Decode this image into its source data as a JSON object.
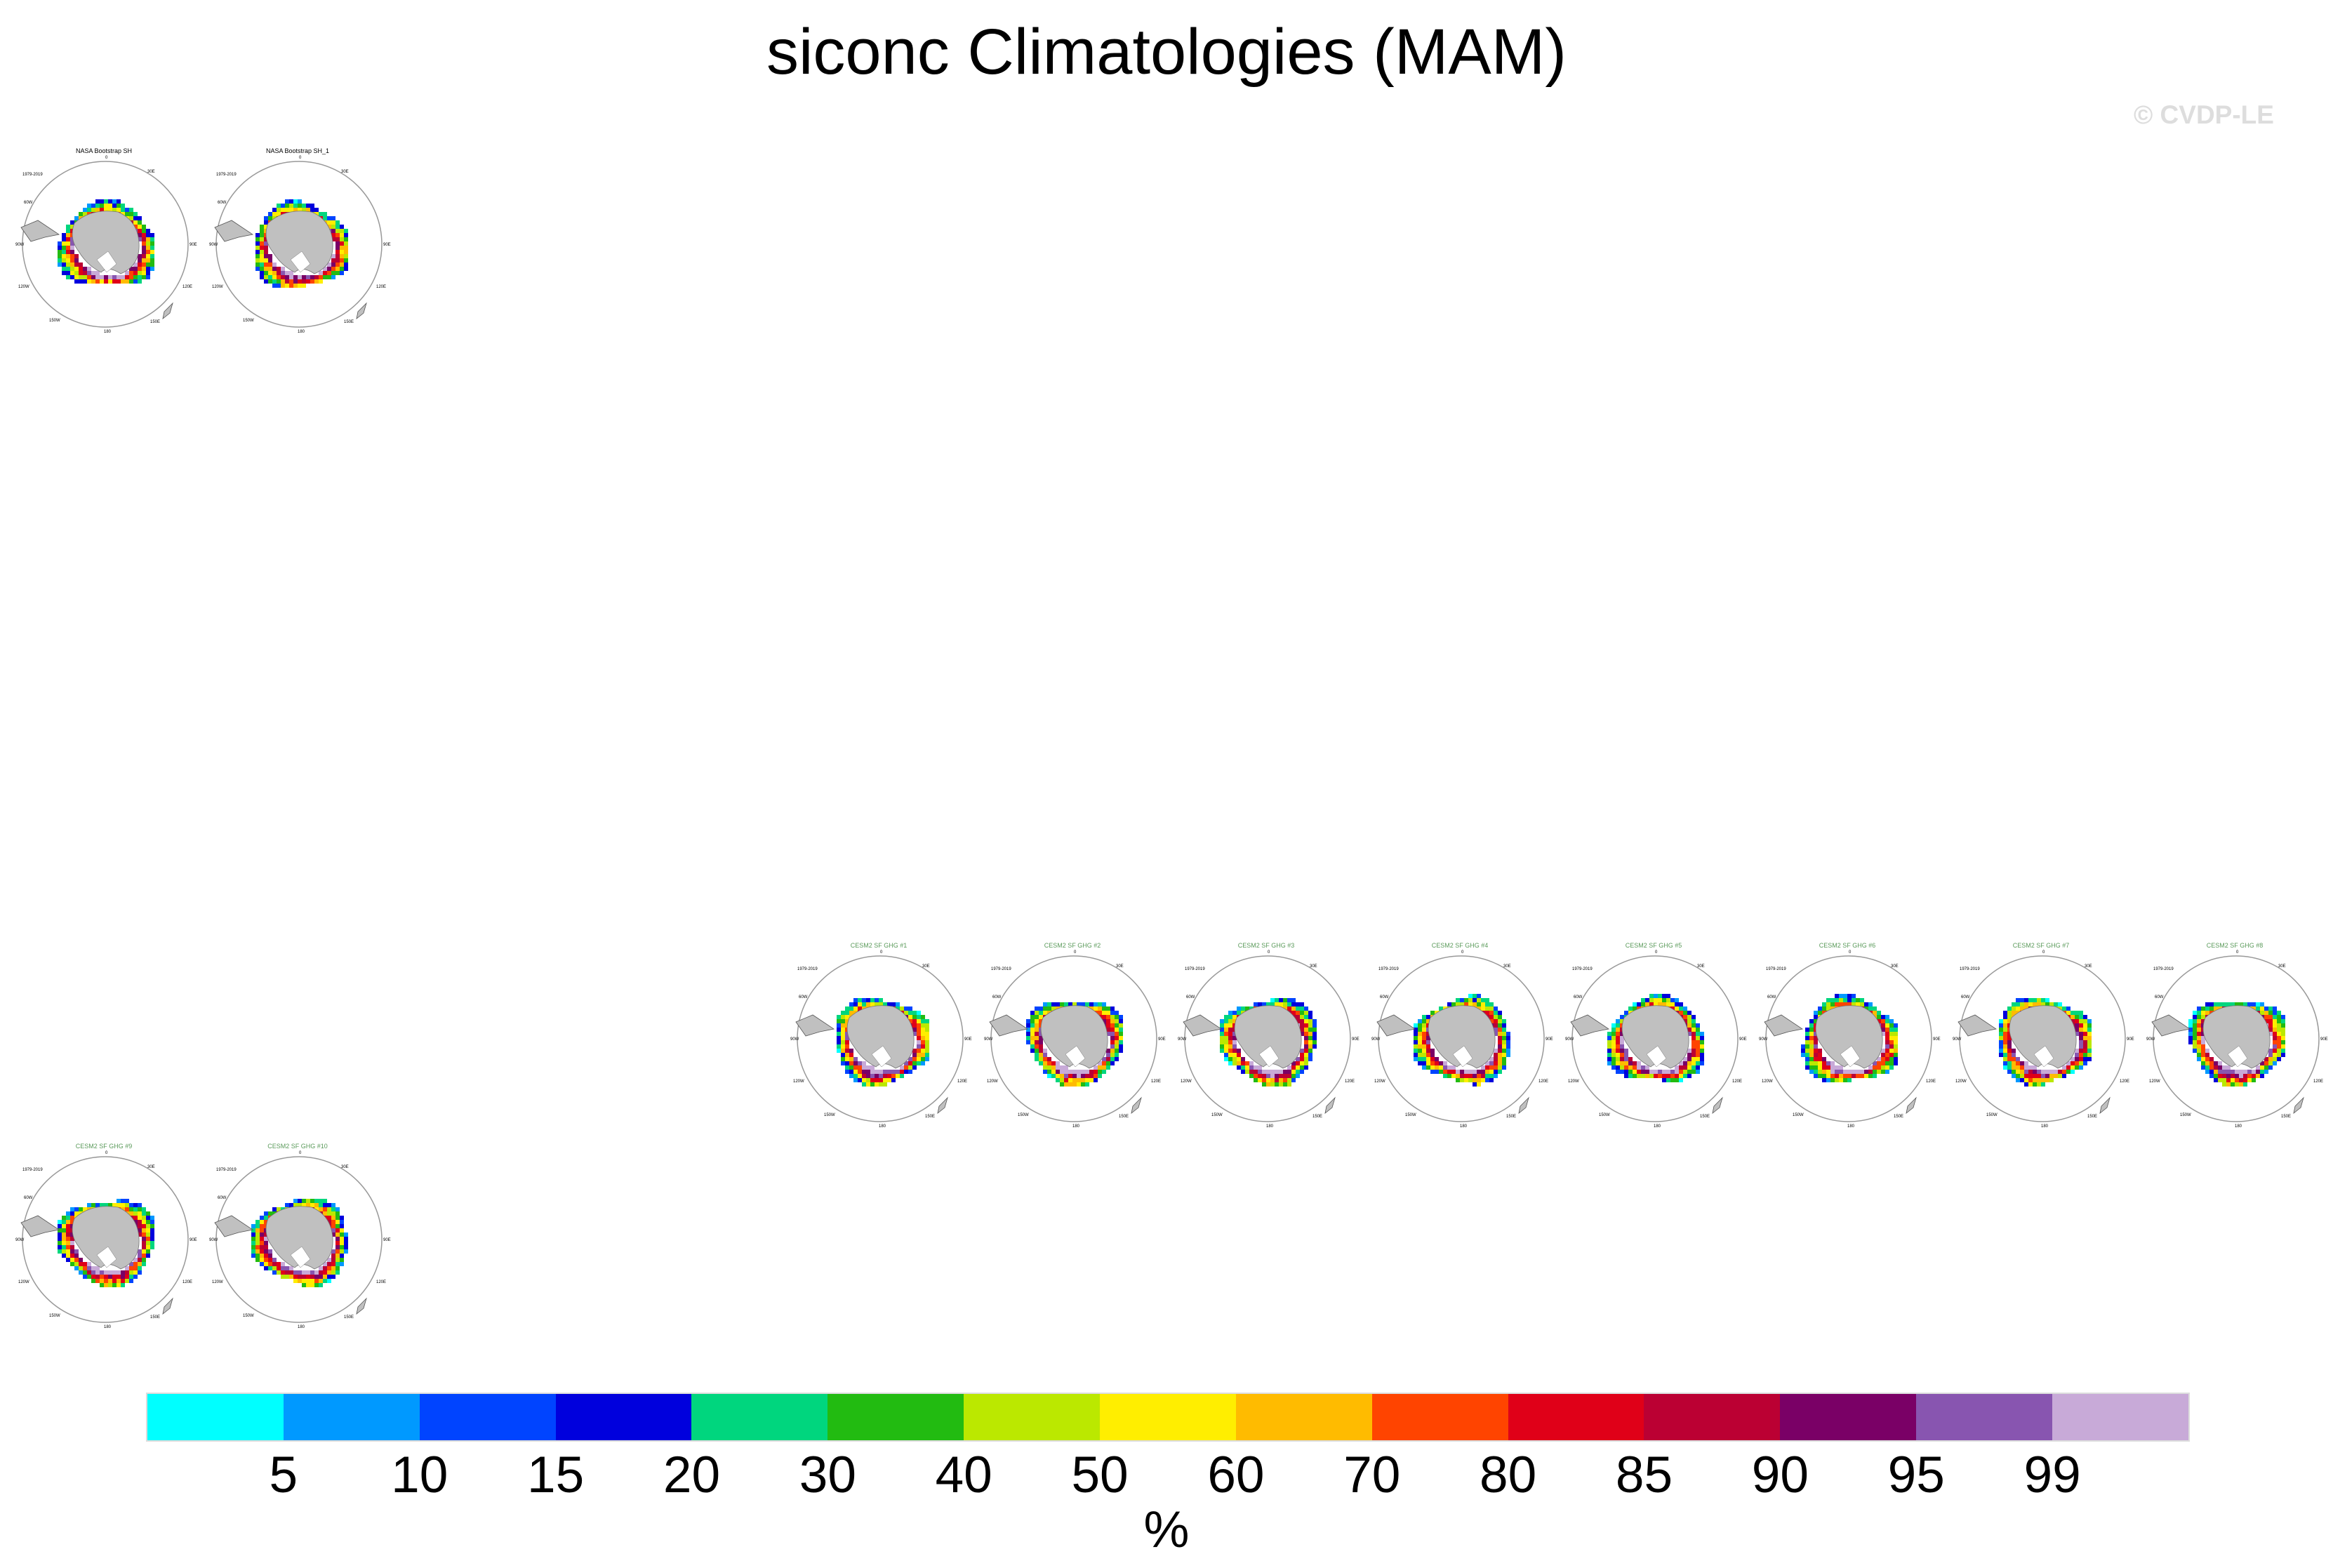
{
  "title": "siconc Climatologies (MAM)",
  "watermark": "© CVDP-LE",
  "panels": [
    {
      "title": "NASA Bootstrap SH",
      "years": "1979-2019",
      "title_color": "#000000",
      "row": 0,
      "col": 0
    },
    {
      "title": "NASA Bootstrap SH_1",
      "years": "1979-2019",
      "title_color": "#000000",
      "row": 0,
      "col": 1
    },
    {
      "title": "CESM2 SF GHG #1",
      "years": "1979-2019",
      "title_color": "#5a9a5a",
      "row": 1,
      "col": 4
    },
    {
      "title": "CESM2 SF GHG #2",
      "years": "1979-2019",
      "title_color": "#5a9a5a",
      "row": 1,
      "col": 5
    },
    {
      "title": "CESM2 SF GHG #3",
      "years": "1979-2019",
      "title_color": "#5a9a5a",
      "row": 1,
      "col": 6
    },
    {
      "title": "CESM2 SF GHG #4",
      "years": "1979-2019",
      "title_color": "#5a9a5a",
      "row": 1,
      "col": 7
    },
    {
      "title": "CESM2 SF GHG #5",
      "years": "1979-2019",
      "title_color": "#5a9a5a",
      "row": 1,
      "col": 8
    },
    {
      "title": "CESM2 SF GHG #6",
      "years": "1979-2019",
      "title_color": "#5a9a5a",
      "row": 1,
      "col": 9
    },
    {
      "title": "CESM2 SF GHG #7",
      "years": "1979-2019",
      "title_color": "#5a9a5a",
      "row": 1,
      "col": 10
    },
    {
      "title": "CESM2 SF GHG #8",
      "years": "1979-2019",
      "title_color": "#5a9a5a",
      "row": 1,
      "col": 11
    },
    {
      "title": "CESM2 SF GHG #9",
      "years": "1979-2019",
      "title_color": "#5a9a5a",
      "row": 2,
      "col": 0
    },
    {
      "title": "CESM2 SF GHG #10",
      "years": "1979-2019",
      "title_color": "#5a9a5a",
      "row": 2,
      "col": 1
    }
  ],
  "map_labels": {
    "lon_0": "0",
    "lon_30e": "30E",
    "lon_90e": "90E",
    "lon_120e": "120E",
    "lon_150e": "150E",
    "lon_180": "180",
    "lon_150w": "150W",
    "lon_120w": "120W",
    "lon_90w": "90W",
    "lon_60w": "60W"
  },
  "colorbar": {
    "colors": [
      "#00ffff",
      "#0099ff",
      "#0044ff",
      "#0000dd",
      "#00d67e",
      "#22bb11",
      "#bbe800",
      "#ffee00",
      "#ffbb00",
      "#ff4400",
      "#e00018",
      "#bb0033",
      "#7a0066",
      "#8855b0",
      "#c8aad8"
    ],
    "ticks": [
      "5",
      "10",
      "15",
      "20",
      "30",
      "40",
      "50",
      "60",
      "70",
      "80",
      "85",
      "90",
      "95",
      "99"
    ],
    "units": "%"
  },
  "colors": {
    "land": "#c0c0c0",
    "ring": "#999999"
  }
}
